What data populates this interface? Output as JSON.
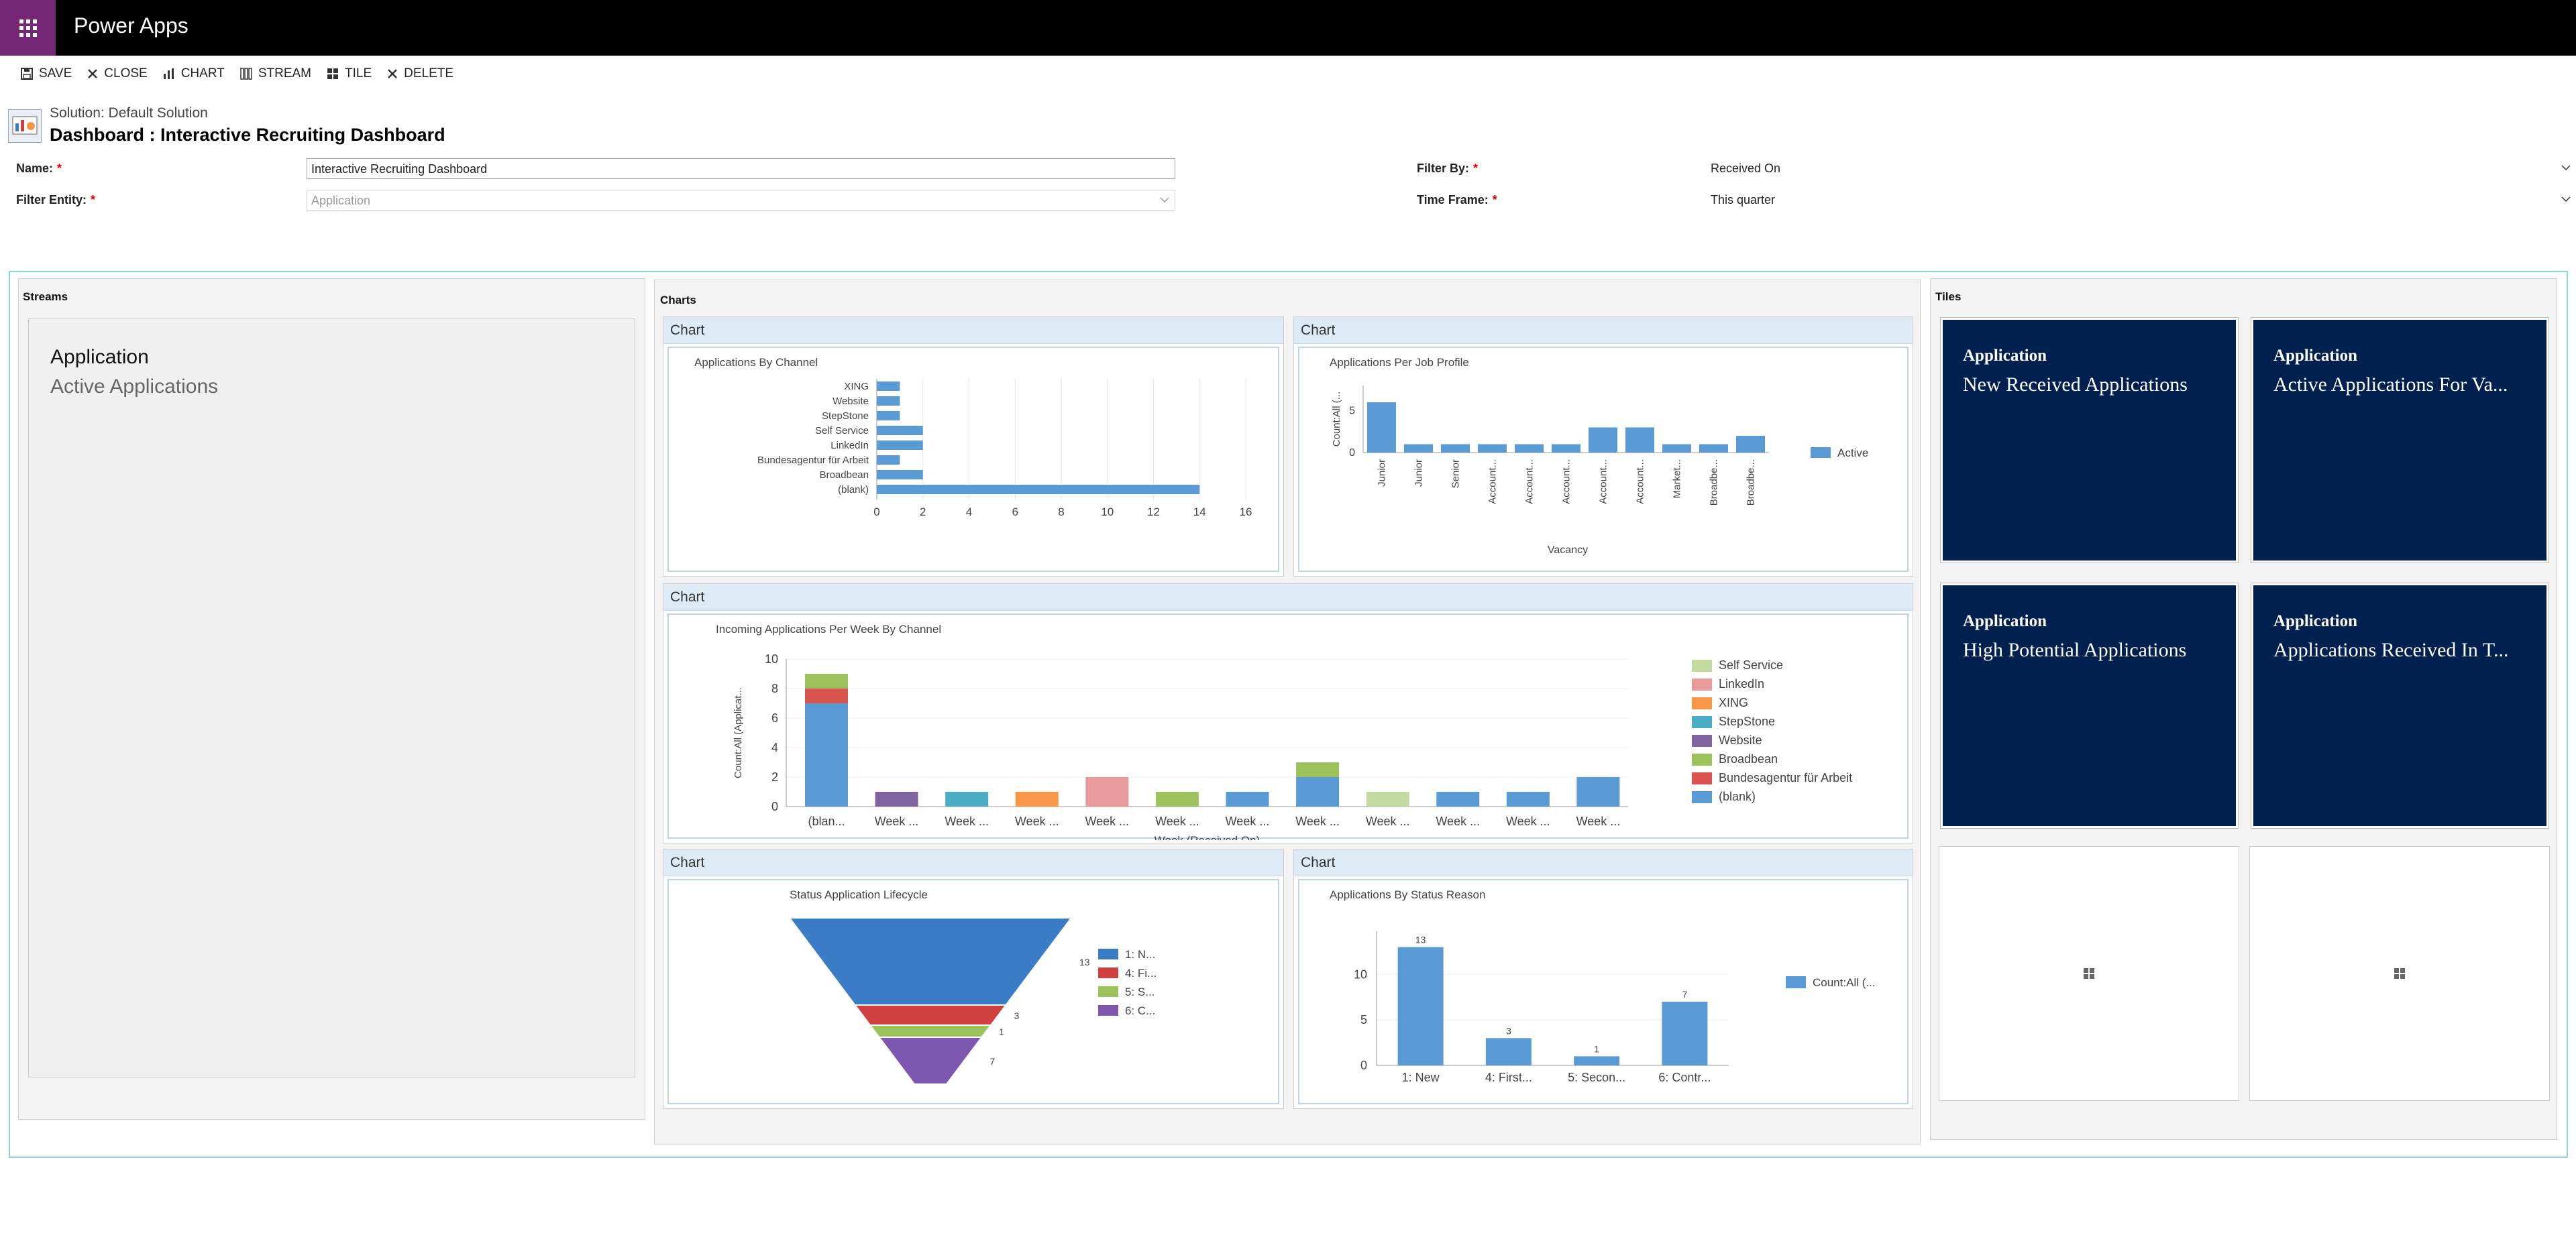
{
  "app": {
    "title": "Power Apps"
  },
  "toolbar": {
    "save": "SAVE",
    "close": "CLOSE",
    "chart": "CHART",
    "stream": "STREAM",
    "tile": "TILE",
    "delete": "DELETE"
  },
  "header": {
    "solution": "Solution: Default Solution",
    "title": "Dashboard : Interactive Recruiting Dashboard"
  },
  "form": {
    "name_label": "Name:",
    "name_value": "Interactive Recruiting Dashboard",
    "entity_label": "Filter Entity:",
    "entity_value": "Application",
    "filterby_label": "Filter By:",
    "filterby_value": "Received On",
    "timeframe_label": "Time Frame:",
    "timeframe_value": "This quarter",
    "required": "*"
  },
  "sections": {
    "streams": "Streams",
    "charts": "Charts",
    "tiles": "Tiles"
  },
  "stream": {
    "entity": "Application",
    "view": "Active Applications"
  },
  "chart_header": "Chart",
  "tiles": [
    {
      "entity": "Application",
      "view": "New Received Applications"
    },
    {
      "entity": "Application",
      "view": "Active Applications For Va..."
    },
    {
      "entity": "Application",
      "view": "High Potential Applications"
    },
    {
      "entity": "Application",
      "view": "Applications Received In T..."
    }
  ],
  "colors": {
    "accent": "#742774",
    "tile": "#002050",
    "bar": "#5b9bd5",
    "hdr": "#dcebf6"
  },
  "chart_data": [
    {
      "type": "bar",
      "orientation": "horizontal",
      "title": "Applications By Channel",
      "categories": [
        "XING",
        "Website",
        "StepStone",
        "Self Service",
        "LinkedIn",
        "Bundesagentur für Arbeit",
        "Broadbean",
        "(blank)"
      ],
      "values": [
        1,
        1,
        1,
        2,
        2,
        1,
        2,
        14
      ],
      "xlim": [
        0,
        16
      ],
      "ticks": [
        "0",
        "2",
        "4",
        "6",
        "8",
        "10",
        "12",
        "14",
        "16"
      ]
    },
    {
      "type": "bar",
      "title": "Applications Per Job Profile",
      "categories": [
        "Junior",
        "Junior",
        "Senior",
        "Account...",
        "Account...",
        "Account...",
        "Account...",
        "Account...",
        "Market...",
        "Broadbe...",
        "Broadbe..."
      ],
      "values": [
        6,
        1,
        1,
        1,
        1,
        1,
        3,
        3,
        1,
        1,
        2
      ],
      "xlabel": "Vacancy",
      "ylabel": "Count:All (...",
      "ylim": [
        0,
        8
      ],
      "ticks": [
        "0",
        "5"
      ],
      "legend": "Active"
    },
    {
      "type": "bar",
      "stacked": true,
      "title": "Incoming Applications Per Week By Channel",
      "xlabel": "Week (Received On)",
      "ylabel": "Count:All (Applicat...",
      "categories": [
        "(blan...",
        "Week ...",
        "Week ...",
        "Week ...",
        "Week ...",
        "Week ...",
        "Week ...",
        "Week ...",
        "Week ...",
        "Week ...",
        "Week ...",
        "Week ..."
      ],
      "ylim": [
        0,
        10
      ],
      "ticks": [
        "0",
        "2",
        "4",
        "6",
        "8",
        "10"
      ],
      "series": [
        {
          "name": "(blank)",
          "color": "#5b9bd5",
          "values": [
            7,
            0,
            0,
            0,
            0,
            0,
            1,
            2,
            0,
            1,
            1,
            2
          ]
        },
        {
          "name": "Bundesagentur für Arbeit",
          "color": "#d9534f",
          "values": [
            1,
            0,
            0,
            0,
            0,
            0,
            0,
            0,
            0,
            0,
            0,
            0
          ]
        },
        {
          "name": "Broadbean",
          "color": "#9bc25b",
          "values": [
            1,
            0,
            0,
            0,
            0,
            1,
            0,
            1,
            0,
            0,
            0,
            0
          ]
        },
        {
          "name": "Website",
          "color": "#8064a2",
          "values": [
            0,
            1,
            0,
            0,
            0,
            0,
            0,
            0,
            0,
            0,
            0,
            0
          ]
        },
        {
          "name": "StepStone",
          "color": "#4bacc6",
          "values": [
            0,
            0,
            1,
            0,
            0,
            0,
            0,
            0,
            0,
            0,
            0,
            0
          ]
        },
        {
          "name": "XING",
          "color": "#f79646",
          "values": [
            0,
            0,
            0,
            1,
            0,
            0,
            0,
            0,
            0,
            0,
            0,
            0
          ]
        },
        {
          "name": "LinkedIn",
          "color": "#e8999b",
          "values": [
            0,
            0,
            0,
            0,
            2,
            0,
            0,
            0,
            0,
            0,
            0,
            0
          ]
        },
        {
          "name": "Self Service",
          "color": "#c4dba0",
          "values": [
            0,
            0,
            0,
            0,
            0,
            0,
            0,
            0,
            1,
            0,
            0,
            0
          ]
        }
      ],
      "legend": [
        "Self Service",
        "LinkedIn",
        "XING",
        "StepStone",
        "Website",
        "Broadbean",
        "Bundesagentur für Arbeit",
        "(blank)"
      ]
    },
    {
      "type": "funnel",
      "title": "Status Application Lifecycle",
      "categories": [
        "1: N...",
        "4: Fi...",
        "5: S...",
        "6: C..."
      ],
      "values": [
        13,
        3,
        1,
        7
      ],
      "colors": [
        "#3a7cc6",
        "#d04040",
        "#9bc25b",
        "#7e57b0"
      ]
    },
    {
      "type": "bar",
      "title": "Applications By Status Reason",
      "categories": [
        "1: New",
        "4: First...",
        "5: Secon...",
        "6: Contr..."
      ],
      "values": [
        13,
        3,
        1,
        7
      ],
      "ylim": [
        0,
        14
      ],
      "ticks": [
        "0",
        "5",
        "10"
      ],
      "legend": "Count:All (..."
    }
  ]
}
